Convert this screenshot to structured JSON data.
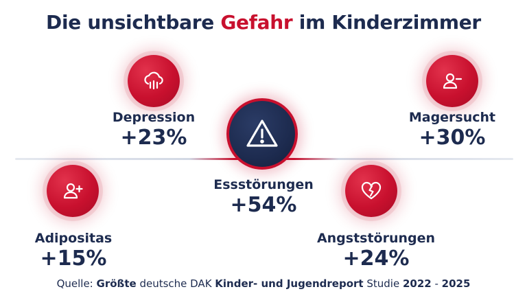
{
  "title": {
    "part1": "Die unsichtbare ",
    "accent": "Gefahr",
    "part2": " im Kinderzimmer"
  },
  "items": {
    "depression": {
      "name": "Depression",
      "value": "+23%",
      "icon": "cloud-rain-icon"
    },
    "magersucht": {
      "name": "Magersucht",
      "value": "+30%",
      "icon": "user-minus-icon"
    },
    "essstoerungen": {
      "name": "Essstörungen",
      "value": "+54%",
      "icon": "warning-triangle-icon"
    },
    "adipositas": {
      "name": "Adipositas",
      "value": "+15%",
      "icon": "user-plus-icon"
    },
    "angststoerungen": {
      "name": "Angststörungen",
      "value": "+24%",
      "icon": "heart-broken-icon"
    }
  },
  "source": {
    "prefix": "Quelle: ",
    "bold1": "Größte",
    "mid1": " deutsche DAK ",
    "bold2": "Kinder- und Jugendreport",
    "mid2": " Studie ",
    "bold3": "2022",
    "sep": " - ",
    "bold4": "2025"
  },
  "colors": {
    "accent": "#c8102e",
    "navy": "#1d2b4f"
  }
}
